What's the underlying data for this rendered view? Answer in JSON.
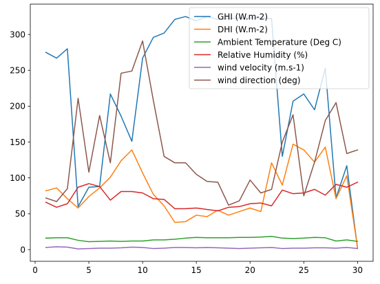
{
  "chart_data": {
    "type": "line",
    "title": "",
    "xlabel": "",
    "ylabel": "",
    "xlim": [
      -0.45,
      31.45
    ],
    "ylim": [
      -16.3,
      342.3
    ],
    "xticks": [
      0,
      5,
      10,
      15,
      20,
      25,
      30
    ],
    "yticks": [
      0,
      50,
      100,
      150,
      200,
      250,
      300
    ],
    "grid": false,
    "legend_position": "top-right",
    "x": [
      1,
      2,
      3,
      4,
      5,
      6,
      7,
      8,
      9,
      10,
      11,
      12,
      13,
      14,
      15,
      16,
      17,
      18,
      19,
      20,
      21,
      22,
      23,
      24,
      25,
      26,
      27,
      28,
      29,
      30
    ],
    "series": [
      {
        "name": "GHI (W.m-2)",
        "color": "#1f77b4",
        "values": [
          275,
          267,
          280,
          60,
          87,
          88,
          217,
          186,
          151,
          267,
          296,
          302,
          321,
          325,
          319,
          325,
          321,
          322,
          323,
          323,
          323,
          322,
          130,
          207,
          217,
          195,
          253,
          72,
          117,
          2
        ]
      },
      {
        "name": "DHI (W.m-2)",
        "color": "#ff7f0e",
        "values": [
          82,
          86,
          71,
          58,
          74,
          86,
          101,
          124,
          139,
          107,
          77,
          61,
          38,
          39,
          48,
          46,
          55,
          48,
          53,
          58,
          53,
          121,
          90,
          147,
          139,
          122,
          143,
          71,
          103,
          3
        ]
      },
      {
        "name": "Ambient Temperature (Deg C)",
        "color": "#2ca02c",
        "values": [
          16,
          16.5,
          16.5,
          13,
          11,
          11.5,
          12,
          11.5,
          12,
          12,
          13.5,
          13.5,
          14.5,
          16,
          17,
          16.5,
          16.5,
          16.5,
          17,
          17,
          17.5,
          18.5,
          16,
          15.5,
          16,
          17,
          16.5,
          12,
          13.5,
          11.5
        ]
      },
      {
        "name": "Relative Humidity (%)",
        "color": "#d62728",
        "values": [
          66,
          59,
          64,
          87,
          92,
          88,
          69,
          81,
          81,
          79,
          71,
          70,
          57,
          57,
          58,
          56,
          54,
          59,
          60,
          64,
          65,
          61,
          83,
          78,
          79,
          84,
          76,
          91,
          87,
          94
        ]
      },
      {
        "name": "wind velocity (m.s-1)",
        "color": "#9467bd",
        "values": [
          3,
          4,
          3.5,
          1,
          1.5,
          2,
          2,
          2.5,
          3.5,
          3,
          1.5,
          2,
          3,
          3,
          2.5,
          3,
          2.5,
          2,
          1.5,
          2,
          2.5,
          3,
          1.5,
          2,
          2,
          2.5,
          2.5,
          2,
          3,
          1.5
        ]
      },
      {
        "name": "wind direction (deg)",
        "color": "#8c564b",
        "values": [
          72,
          67,
          85,
          211,
          108,
          187,
          121,
          246,
          249,
          291,
          208,
          130,
          121,
          121,
          105,
          95,
          94,
          62,
          68,
          97,
          79,
          84,
          150,
          188,
          75,
          122,
          180,
          205,
          134,
          139
        ]
      }
    ]
  }
}
